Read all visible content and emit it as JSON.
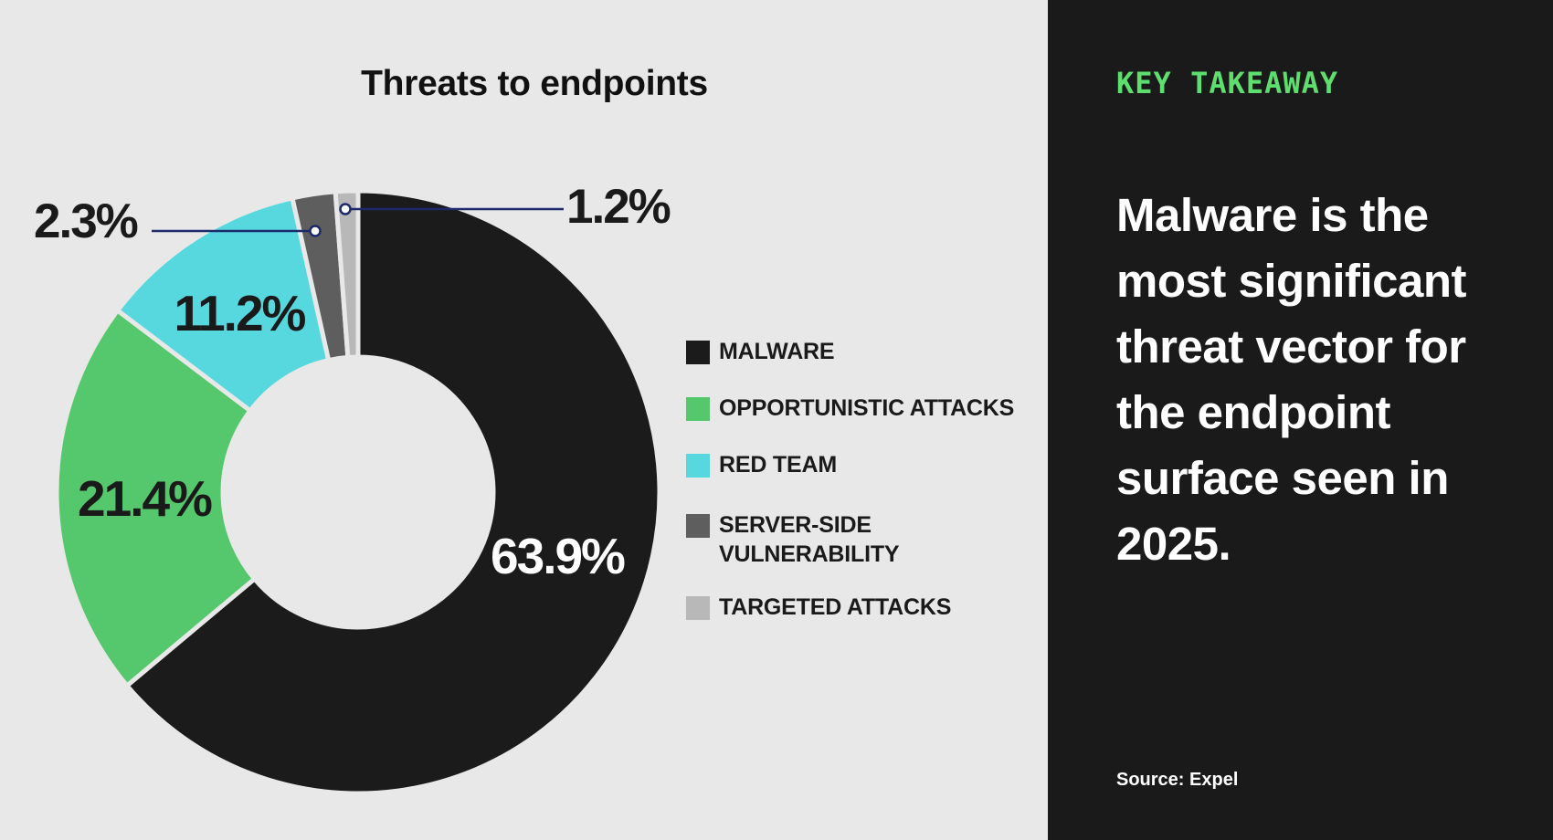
{
  "chart_data": {
    "type": "pie",
    "title": "Threats to endpoints",
    "donut": true,
    "categories": [
      "MALWARE",
      "OPPORTUNISTIC ATTACKS",
      "RED TEAM",
      "SERVER-SIDE\nVULNERABILITY",
      "TARGETED ATTACKS"
    ],
    "values": [
      63.9,
      21.4,
      11.2,
      2.3,
      1.2
    ],
    "data_labels": [
      "63.9%",
      "21.4%",
      "11.2%",
      "2.3%",
      "1.2%"
    ],
    "colors": [
      "#1b1b1b",
      "#55c76c",
      "#57d8df",
      "#5e5e5e",
      "#b8b8b8"
    ],
    "label_colors": [
      "#ffffff",
      "#1a1a1a",
      "#1a1a1a",
      "#1a1a1a",
      "#1a1a1a"
    ],
    "legend_position": "right"
  },
  "takeaway": {
    "kicker": "KEY TAKEAWAY",
    "text": "Malware is the most significant threat vector for the endpoint surface seen in 2025.",
    "source": "Source: Expel"
  }
}
